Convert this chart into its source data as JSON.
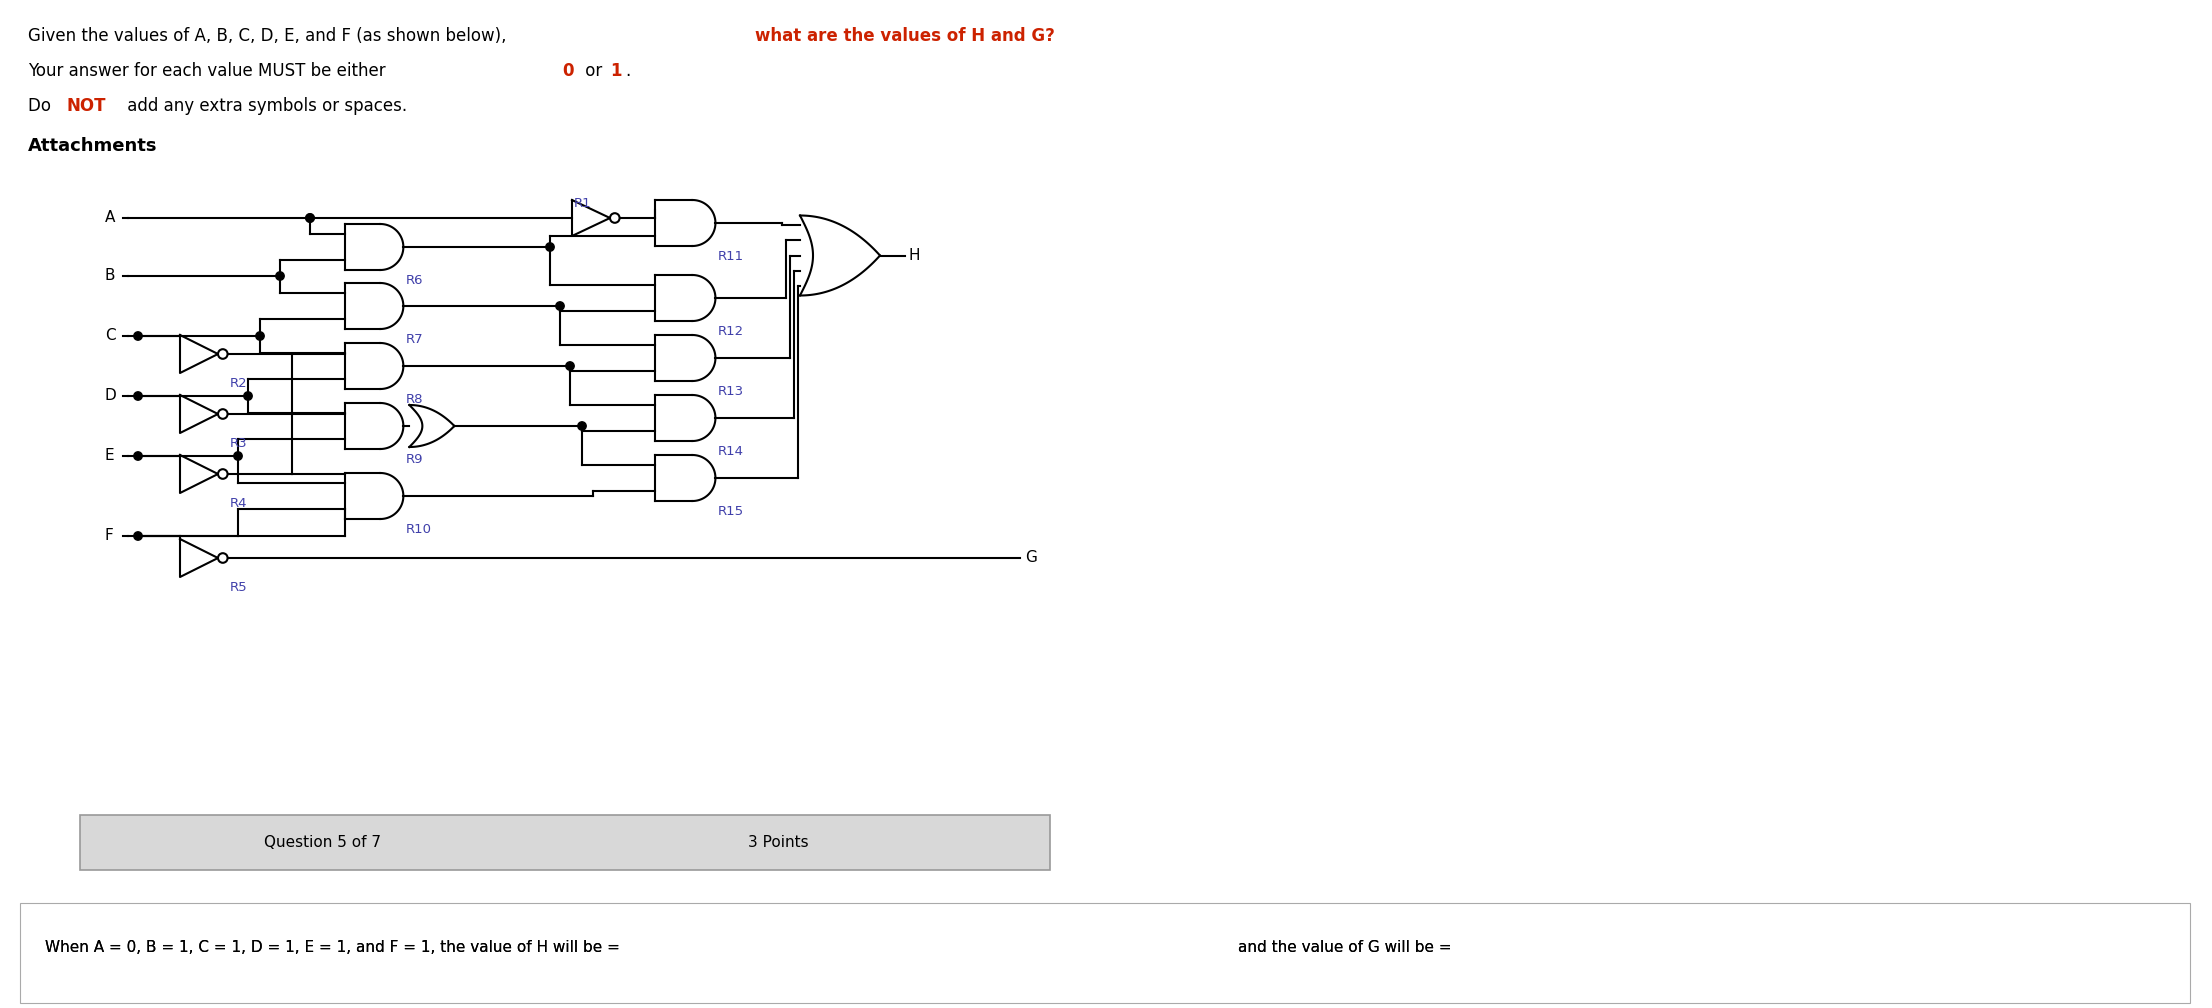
{
  "line1a": "Given the values of A, B, C, D, E, and F (as shown below), ",
  "line1b": "what are the values of H and G?",
  "line2a": "Your answer for each value MUST be either ",
  "line2b": "0",
  "line2c": " or ",
  "line2d": "1",
  "line2e": ".",
  "line3a": "Do ",
  "line3b": "NOT",
  "line3c": " add any extra symbols or spaces.",
  "attachments": "Attachments",
  "question_bar_left": "Question 5 of 7",
  "question_bar_right": "3 Points",
  "bottom_left": "When A = 0, B = 1, C = 1, D = 1, E = 1, and F = 1, the value of H will be =",
  "bottom_right": "and the value of G will be =",
  "red": "#cc2200",
  "black": "#000000",
  "blue_label": "#4040aa",
  "bg": "#ffffff",
  "bar_bg": "#e8e8e8"
}
